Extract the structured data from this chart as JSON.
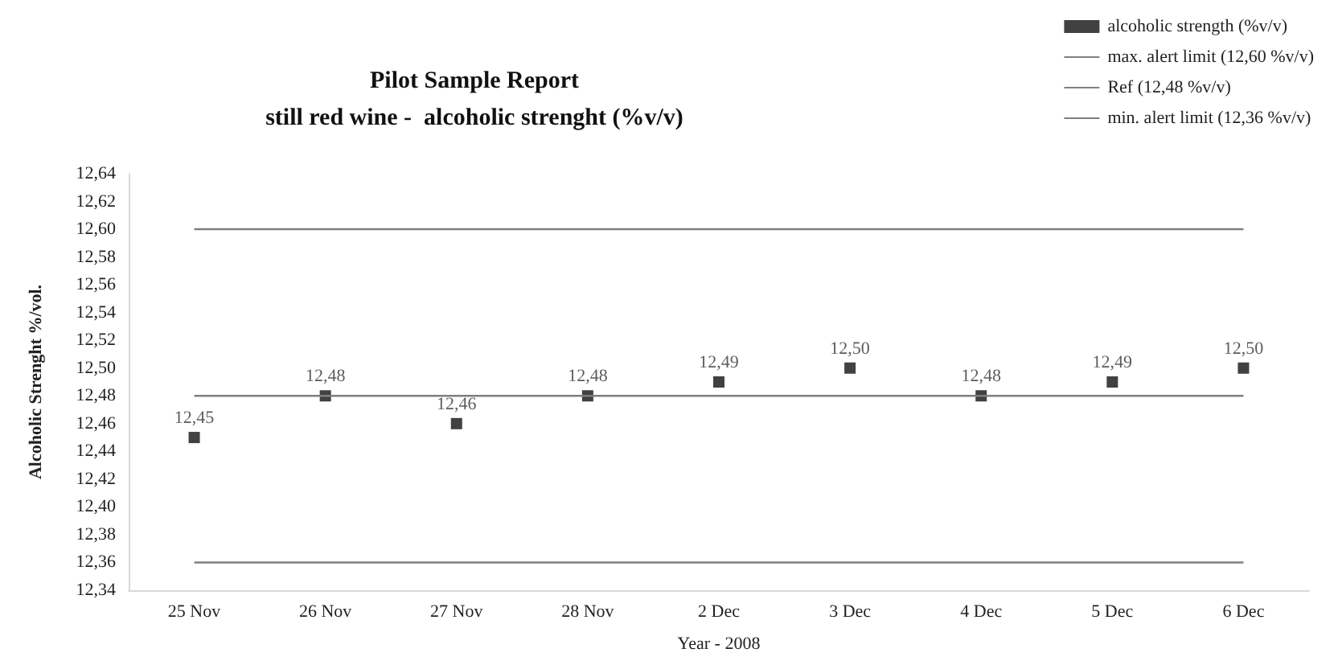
{
  "chart_data": {
    "type": "scatter",
    "title": "Pilot Sample Report",
    "subtitle": "still red wine -  alcoholic strenght (%v/v)",
    "xlabel": "Year - 2008",
    "ylabel": "Alcoholic Strenght %/vol.",
    "categories": [
      "25 Nov",
      "26 Nov",
      "27 Nov",
      "28 Nov",
      "2 Dec",
      "3 Dec",
      "4 Dec",
      "5 Dec",
      "6 Dec"
    ],
    "series": [
      {
        "name": "alcoholic strength (%v/v)",
        "marker": "square",
        "color": "#111111",
        "values": [
          12.45,
          12.48,
          12.46,
          12.48,
          12.49,
          12.5,
          12.48,
          12.49,
          12.5
        ],
        "value_labels": [
          "12,45",
          "12,48",
          "12,46",
          "12,48",
          "12,49",
          "12,50",
          "12,48",
          "12,49",
          "12,50"
        ]
      },
      {
        "name": "max. alert limit (12,60 %v/v)",
        "type": "line",
        "marker": "none",
        "color": "#7f7f7f",
        "values": [
          12.6,
          12.6,
          12.6,
          12.6,
          12.6,
          12.6,
          12.6,
          12.6,
          12.6
        ]
      },
      {
        "name": "Ref (12,48 %v/v)",
        "type": "line",
        "marker": "none",
        "color": "#7f7f7f",
        "values": [
          12.48,
          12.48,
          12.48,
          12.48,
          12.48,
          12.48,
          12.48,
          12.48,
          12.48
        ]
      },
      {
        "name": "min. alert limit (12,36 %v/v)",
        "type": "line",
        "marker": "none",
        "color": "#7f7f7f",
        "values": [
          12.36,
          12.36,
          12.36,
          12.36,
          12.36,
          12.36,
          12.36,
          12.36,
          12.36
        ]
      }
    ],
    "ylim": [
      12.34,
      12.64
    ],
    "yticks": [
      {
        "value": 12.34,
        "label": "12,34"
      },
      {
        "value": 12.36,
        "label": "12,36"
      },
      {
        "value": 12.38,
        "label": "12,38"
      },
      {
        "value": 12.4,
        "label": "12,40"
      },
      {
        "value": 12.42,
        "label": "12,42"
      },
      {
        "value": 12.44,
        "label": "12,44"
      },
      {
        "value": 12.46,
        "label": "12,46"
      },
      {
        "value": 12.48,
        "label": "12,48"
      },
      {
        "value": 12.5,
        "label": "12,50"
      },
      {
        "value": 12.52,
        "label": "12,52"
      },
      {
        "value": 12.54,
        "label": "12,54"
      },
      {
        "value": 12.56,
        "label": "12,56"
      },
      {
        "value": 12.58,
        "label": "12,58"
      },
      {
        "value": 12.6,
        "label": "12,60"
      },
      {
        "value": 12.62,
        "label": "12,62"
      },
      {
        "value": 12.64,
        "label": "12,64"
      }
    ],
    "grid": false,
    "legend": "top right"
  }
}
